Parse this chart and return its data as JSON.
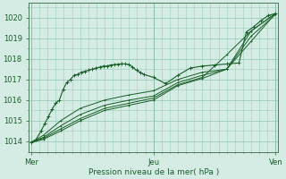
{
  "bg_color": "#d4ece4",
  "grid_color": "#99ccbb",
  "line_color": "#1a5e28",
  "xlabel": "Pression niveau de la mer( hPa )",
  "xtick_labels": [
    "Mer",
    "Jeu",
    "Ven"
  ],
  "xtick_positions": [
    0.0,
    0.5,
    1.0
  ],
  "ylim": [
    1013.5,
    1020.7
  ],
  "yticks": [
    1014,
    1015,
    1016,
    1017,
    1018,
    1019,
    1020
  ],
  "figsize": [
    3.2,
    2.0
  ],
  "dpi": 100,
  "lines": [
    {
      "x": [
        0.0,
        0.02,
        0.04,
        0.055,
        0.07,
        0.085,
        0.1,
        0.115,
        0.13,
        0.145,
        0.16,
        0.175,
        0.19,
        0.205,
        0.22,
        0.235,
        0.25,
        0.265,
        0.28,
        0.295,
        0.31,
        0.325,
        0.34,
        0.355,
        0.37,
        0.385,
        0.4,
        0.415,
        0.43,
        0.445,
        0.46,
        0.5,
        0.55,
        0.6,
        0.65,
        0.7,
        0.75,
        0.8,
        0.85,
        0.88,
        0.91,
        0.94,
        0.97,
        1.0
      ],
      "y": [
        1013.95,
        1014.1,
        1014.5,
        1014.85,
        1015.2,
        1015.55,
        1015.85,
        1016.0,
        1016.5,
        1016.85,
        1017.0,
        1017.2,
        1017.25,
        1017.35,
        1017.4,
        1017.45,
        1017.5,
        1017.55,
        1017.6,
        1017.65,
        1017.65,
        1017.7,
        1017.72,
        1017.74,
        1017.76,
        1017.75,
        1017.72,
        1017.6,
        1017.45,
        1017.35,
        1017.25,
        1017.1,
        1016.8,
        1017.2,
        1017.55,
        1017.65,
        1017.7,
        1017.75,
        1017.8,
        1019.3,
        1019.55,
        1019.85,
        1020.1,
        1020.2
      ]
    },
    {
      "x": [
        0.0,
        0.05,
        0.12,
        0.2,
        0.3,
        0.4,
        0.5,
        0.6,
        0.7,
        0.8,
        0.9,
        1.0
      ],
      "y": [
        1013.95,
        1014.3,
        1015.0,
        1015.6,
        1016.0,
        1016.25,
        1016.45,
        1017.0,
        1017.35,
        1017.5,
        1019.1,
        1020.15
      ]
    },
    {
      "x": [
        0.0,
        0.05,
        0.12,
        0.2,
        0.3,
        0.4,
        0.5,
        0.6,
        0.7,
        0.8,
        0.9,
        1.0
      ],
      "y": [
        1013.95,
        1014.2,
        1014.75,
        1015.3,
        1015.75,
        1016.0,
        1016.2,
        1016.85,
        1017.2,
        1017.5,
        1018.85,
        1020.2
      ]
    },
    {
      "x": [
        0.0,
        0.05,
        0.12,
        0.2,
        0.3,
        0.4,
        0.5,
        0.6,
        0.7,
        0.8,
        0.9,
        1.0
      ],
      "y": [
        1013.95,
        1014.15,
        1014.6,
        1015.1,
        1015.6,
        1015.85,
        1016.1,
        1016.75,
        1017.1,
        1018.2,
        1019.35,
        1020.2
      ]
    },
    {
      "x": [
        0.0,
        0.05,
        0.12,
        0.2,
        0.3,
        0.4,
        0.5,
        0.6,
        0.7,
        0.8,
        0.9,
        1.0
      ],
      "y": [
        1013.95,
        1014.1,
        1014.5,
        1015.0,
        1015.5,
        1015.75,
        1016.0,
        1016.7,
        1017.05,
        1017.5,
        1019.35,
        1020.2
      ]
    }
  ]
}
